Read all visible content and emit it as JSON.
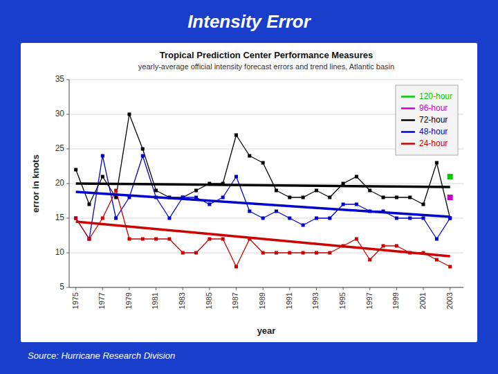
{
  "chart_data": {
    "type": "line",
    "title": "Intensity Error",
    "subtitle": "Tropical Prediction Center Performance Measures",
    "annotations": [
      "yearly-average official intensity forecast errors and trend lines, Atlantic basin",
      "Source: Hurricane Research Division"
    ],
    "x_label": "year",
    "y_label": "error in knots",
    "x": [
      1975,
      1976,
      1977,
      1978,
      1979,
      1980,
      1981,
      1982,
      1983,
      1984,
      1985,
      1986,
      1987,
      1988,
      1989,
      1990,
      1991,
      1992,
      1993,
      1994,
      1995,
      1996,
      1997,
      1998,
      1999,
      2000,
      2001,
      2002,
      2003
    ],
    "series": [
      {
        "name": "120-hour",
        "color": "#00cc00",
        "type": "scatter",
        "marker": "square",
        "x": [
          2003
        ],
        "values": [
          21
        ]
      },
      {
        "name": "96-hour",
        "color": "#cc00cc",
        "type": "scatter",
        "marker": "square",
        "x": [
          2003
        ],
        "values": [
          18
        ]
      },
      {
        "name": "72-hour",
        "color": "#000000",
        "type": "line",
        "marker": "square",
        "values": [
          22,
          17,
          21,
          18,
          30,
          25,
          19,
          18,
          18,
          19,
          20,
          20,
          27,
          24,
          23,
          19,
          18,
          18,
          19,
          18,
          20,
          21,
          19,
          18,
          18,
          18,
          17,
          23,
          15
        ],
        "trend": {
          "x": [
            1975,
            2003
          ],
          "values": [
            20.0,
            19.5
          ]
        }
      },
      {
        "name": "48-hour",
        "color": "#0000cc",
        "type": "line",
        "marker": "square",
        "values": [
          15,
          12,
          24,
          15,
          18,
          24,
          18,
          15,
          18,
          18,
          17,
          18,
          21,
          16,
          15,
          16,
          15,
          14,
          15,
          15,
          17,
          17,
          16,
          16,
          15,
          15,
          15,
          12,
          15
        ],
        "trend": {
          "x": [
            1975,
            2003
          ],
          "values": [
            18.8,
            15.2
          ]
        }
      },
      {
        "name": "24-hour",
        "color": "#cc0000",
        "type": "line",
        "marker": "square",
        "values": [
          15,
          12,
          15,
          19,
          12,
          12,
          12,
          12,
          10,
          10,
          12,
          12,
          8,
          12,
          10,
          10,
          10,
          10,
          10,
          10,
          11,
          12,
          9,
          11,
          11,
          10,
          10,
          9,
          8
        ],
        "trend": {
          "x": [
            1975,
            2003
          ],
          "values": [
            14.5,
            9.5
          ]
        }
      }
    ],
    "xlim": [
      1974.5,
      2004
    ],
    "xticks": [
      1975,
      1977,
      1979,
      1981,
      1983,
      1985,
      1987,
      1989,
      1991,
      1993,
      1995,
      1997,
      1999,
      2001,
      2003
    ],
    "ylim": [
      5,
      35
    ],
    "yticks": [
      5,
      10,
      15,
      20,
      25,
      30,
      35
    ],
    "grid": true,
    "legend": "upper right"
  }
}
